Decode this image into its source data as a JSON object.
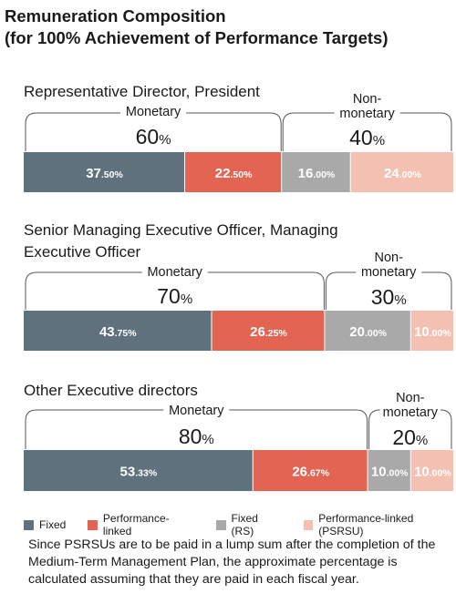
{
  "title_line1": "Remuneration Composition",
  "title_line2": "(for 100% Achievement of Performance Targets)",
  "note": "Since PSRSUs are to be paid in a lump sum after the completion of the Medium-Term Management Plan, the approximate percentage is calculated assuming that they are paid in each fiscal year.",
  "colors": {
    "fixed": "#5f717d",
    "performance_linked": "#e26553",
    "fixed_rs": "#a9a9a9",
    "performance_linked_psrsu": "#f3c0b1"
  },
  "chart_data": {
    "type": "bar",
    "orientation": "horizontal-stacked",
    "unit": "%",
    "categories": [
      "Representative Director, President",
      "Senior Managing Executive Officer, Managing Executive Officer",
      "Other Executive directors"
    ],
    "category_lines": [
      [
        "Representative Director, President"
      ],
      [
        "Senior Managing Executive Officer, Managing",
        "Executive Officer"
      ],
      [
        "Other Executive directors"
      ]
    ],
    "series": [
      {
        "name": "Fixed",
        "values": [
          37.5,
          43.75,
          53.33
        ],
        "labels": [
          "37.50%",
          "43.75%",
          "53.33%"
        ]
      },
      {
        "name": "Performance-linked",
        "values": [
          22.5,
          26.25,
          26.67
        ],
        "labels": [
          "22.50%",
          "26.25%",
          "26.67%"
        ]
      },
      {
        "name": "Fixed (RS)",
        "values": [
          16.0,
          20.0,
          10.0
        ],
        "labels": [
          "16.00%",
          "20.00%",
          "10.00%"
        ]
      },
      {
        "name": "Performance-linked (PSRSU)",
        "values": [
          24.0,
          10.0,
          10.0
        ],
        "labels": [
          "24.00%",
          "10.00%",
          "10.00%"
        ]
      }
    ],
    "group_labels": {
      "monetary": "Monetary",
      "nonmonetary_line1": "Non-",
      "nonmonetary_line2": "monetary"
    },
    "monetary_totals": [
      "60%",
      "70%",
      "80%"
    ],
    "nonmonetary_totals": [
      "40%",
      "30%",
      "20%"
    ],
    "xlim": [
      0,
      100
    ],
    "legend_position": "bottom"
  }
}
